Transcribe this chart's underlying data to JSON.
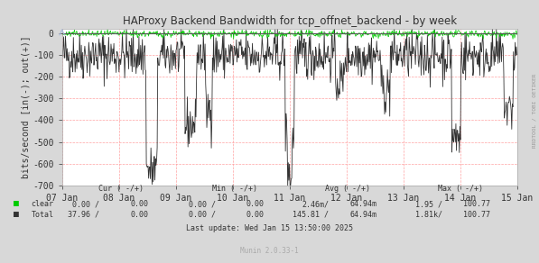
{
  "title": "HAProxy Backend Bandwidth for tcp_offnet_backend - by week",
  "ylabel": "bits/second [in(-); out(+)]",
  "background_color": "#d8d8d8",
  "plot_bg_color": "#ffffff",
  "grid_color": "#ff9999",
  "text_color": "#333333",
  "ylim": [
    -700,
    20
  ],
  "yticks": [
    0,
    -100,
    -200,
    -300,
    -400,
    -500,
    -600,
    -700
  ],
  "xtick_labels": [
    "07 Jan",
    "08 Jan",
    "09 Jan",
    "10 Jan",
    "11 Jan",
    "12 Jan",
    "13 Jan",
    "14 Jan",
    "15 Jan"
  ],
  "rrdtool_label": "RRDTOOL / TOBI OETIKER",
  "footer": "Last update: Wed Jan 15 13:50:00 2025",
  "munin_version": "Munin 2.0.33-1",
  "clear_color": "#00cc00",
  "total_color": "#333333",
  "n_points": 800,
  "seed": 42,
  "legend_clear_label": "clear",
  "legend_total_label": "Total",
  "cur_header": "Cur ( -/+)",
  "min_header": "Min ( -/+)",
  "avg_header": "Avg ( -/+)",
  "max_header": "Max ( -/+)",
  "clear_cur": "0.00 /",
  "clear_cur2": "0.00",
  "clear_min": "0.00 /",
  "clear_min2": "0.00",
  "clear_avg": "2.46m/",
  "clear_avg2": "64.94m",
  "clear_max": "1.95 /",
  "clear_max2": "100.77",
  "total_cur": "37.96 /",
  "total_cur2": "0.00",
  "total_min": "0.00 /",
  "total_min2": "0.00",
  "total_avg": "145.81 /",
  "total_avg2": "64.94m",
  "total_max": "1.81k/",
  "total_max2": "100.77"
}
